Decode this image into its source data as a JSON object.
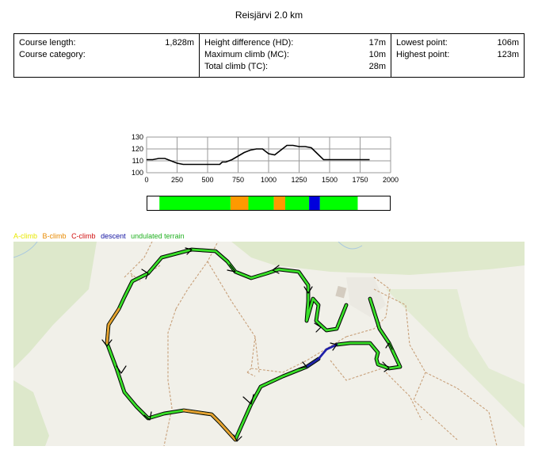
{
  "title": "Reisjärvi 2.0 km",
  "stats": {
    "col1": [
      {
        "label": "Course length:",
        "value": "1,828m"
      },
      {
        "label": "Course category:",
        "value": ""
      }
    ],
    "col2": [
      {
        "label": "Height difference (HD):",
        "value": "17m"
      },
      {
        "label": "Maximum climb (MC):",
        "value": "10m"
      },
      {
        "label": "Total climb (TC):",
        "value": "28m"
      }
    ],
    "col3": [
      {
        "label": "Lowest point:",
        "value": "106m"
      },
      {
        "label": "Highest point:",
        "value": "123m"
      }
    ]
  },
  "chart_data": {
    "type": "line",
    "x": [
      0,
      50,
      100,
      150,
      200,
      250,
      300,
      400,
      500,
      600,
      620,
      650,
      700,
      750,
      800,
      850,
      900,
      950,
      1000,
      1050,
      1100,
      1150,
      1200,
      1250,
      1300,
      1350,
      1400,
      1450,
      1500,
      1600,
      1700,
      1828
    ],
    "y": [
      111,
      111,
      112,
      112,
      110,
      108,
      107,
      107,
      107,
      107,
      109,
      109,
      111,
      114,
      117,
      119,
      120,
      120,
      116,
      115,
      119,
      123,
      123,
      122,
      122,
      121,
      116,
      111,
      111,
      111,
      111,
      111
    ],
    "xticks": [
      0,
      250,
      500,
      750,
      1000,
      1250,
      1500,
      1750,
      2000
    ],
    "yticks": [
      100,
      110,
      120,
      130
    ],
    "xlim": [
      0,
      2000
    ],
    "ylim": [
      100,
      130
    ],
    "grid": true,
    "xlabel": "",
    "ylabel": ""
  },
  "terrain_segments": [
    {
      "start": 0,
      "end": 655,
      "color": "#00ff00"
    },
    {
      "start": 655,
      "end": 820,
      "color": "#ff9900"
    },
    {
      "start": 820,
      "end": 1055,
      "color": "#00ff00"
    },
    {
      "start": 1055,
      "end": 1160,
      "color": "#ff9900"
    },
    {
      "start": 1160,
      "end": 1380,
      "color": "#00ff00"
    },
    {
      "start": 1380,
      "end": 1480,
      "color": "#0000dd"
    },
    {
      "start": 1480,
      "end": 1828,
      "color": "#00ff00"
    }
  ],
  "legend": [
    {
      "label": "A-climb",
      "color": "#e8e800"
    },
    {
      "label": "B-climb",
      "color": "#e88a00"
    },
    {
      "label": "C-climb",
      "color": "#d01010"
    },
    {
      "label": "descent",
      "color": "#1010a0"
    },
    {
      "label": "undulated terrain",
      "color": "#20b020"
    }
  ]
}
